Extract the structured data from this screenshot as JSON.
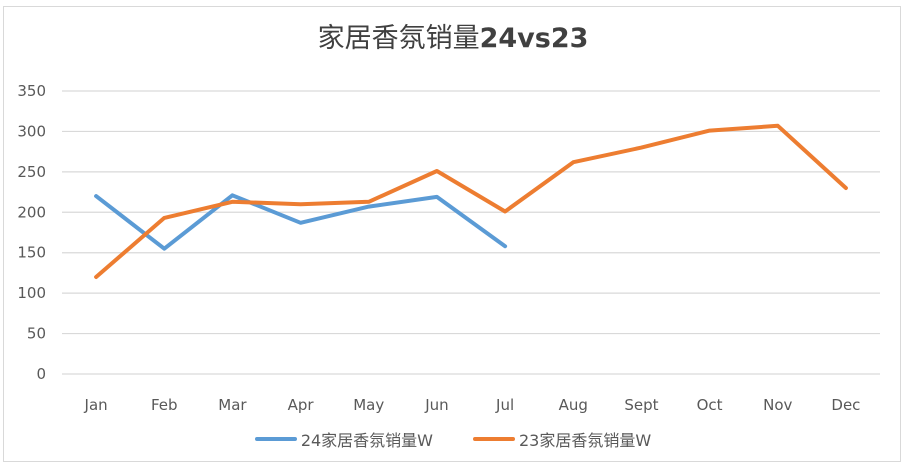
{
  "chart_data": {
    "type": "line",
    "title": "家居香氛销量24vs23",
    "title_parts": {
      "cn": "家居香氛销量",
      "latin": "24vs23"
    },
    "xlabel": "",
    "ylabel": "",
    "categories": [
      "Jan",
      "Feb",
      "Mar",
      "Apr",
      "May",
      "Jun",
      "Jul",
      "Aug",
      "Sept",
      "Oct",
      "Nov",
      "Dec"
    ],
    "yticks": [
      0,
      50,
      100,
      150,
      200,
      250,
      300,
      350
    ],
    "ylim": [
      0,
      350
    ],
    "grid": true,
    "legend_position": "bottom",
    "series": [
      {
        "name": "24家居香氛销量W",
        "color": "#5b9bd5",
        "values": [
          220,
          155,
          221,
          187,
          207,
          219,
          158,
          null,
          null,
          null,
          null,
          null
        ]
      },
      {
        "name": "23家居香氛销量W",
        "color": "#ed7d31",
        "values": [
          120,
          193,
          213,
          210,
          213,
          251,
          201,
          262,
          280,
          301,
          307,
          230
        ]
      }
    ]
  }
}
